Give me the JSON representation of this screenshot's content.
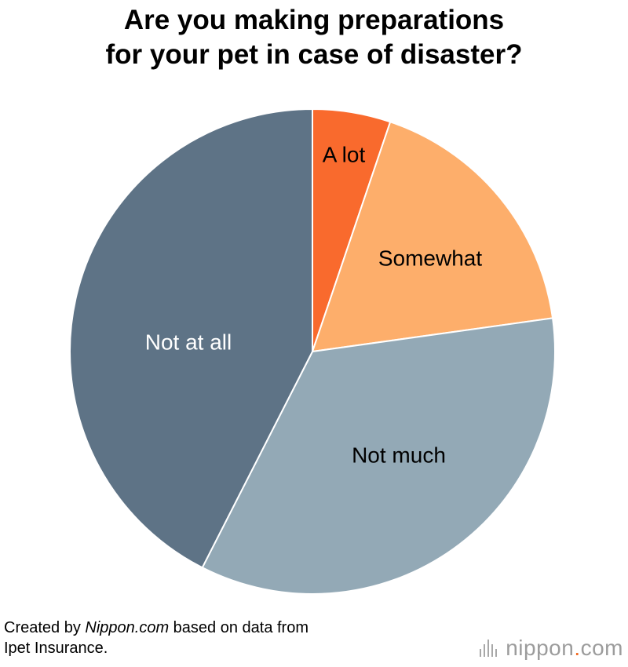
{
  "header": {
    "title_line1": "Are you making preparations",
    "title_line2": "for your pet in case of disaster?"
  },
  "chart_data": {
    "type": "pie",
    "start": "12 o'clock",
    "direction": "clockwise",
    "slices": [
      {
        "label": "A lot",
        "value": 5.2,
        "color": "#f96a2d",
        "label_color": "#000000"
      },
      {
        "label": "Somewhat",
        "value": 17.6,
        "color": "#fdae6b",
        "label_color": "#000000"
      },
      {
        "label": "Not much",
        "value": 34.7,
        "color": "#93a9b6",
        "label_color": "#000000"
      },
      {
        "label": "Not at all",
        "value": 42.5,
        "color": "#5e7386",
        "label_color": "#ffffff"
      }
    ]
  },
  "footer": {
    "prefix": "Created by ",
    "source_site": "Nippon.com",
    "suffix_line1": " based on data from",
    "line2": "Ipet Insurance."
  },
  "logo": {
    "name": "nippon",
    "dot": ".",
    "tld": "com",
    "icon": "sound-bars-icon"
  }
}
